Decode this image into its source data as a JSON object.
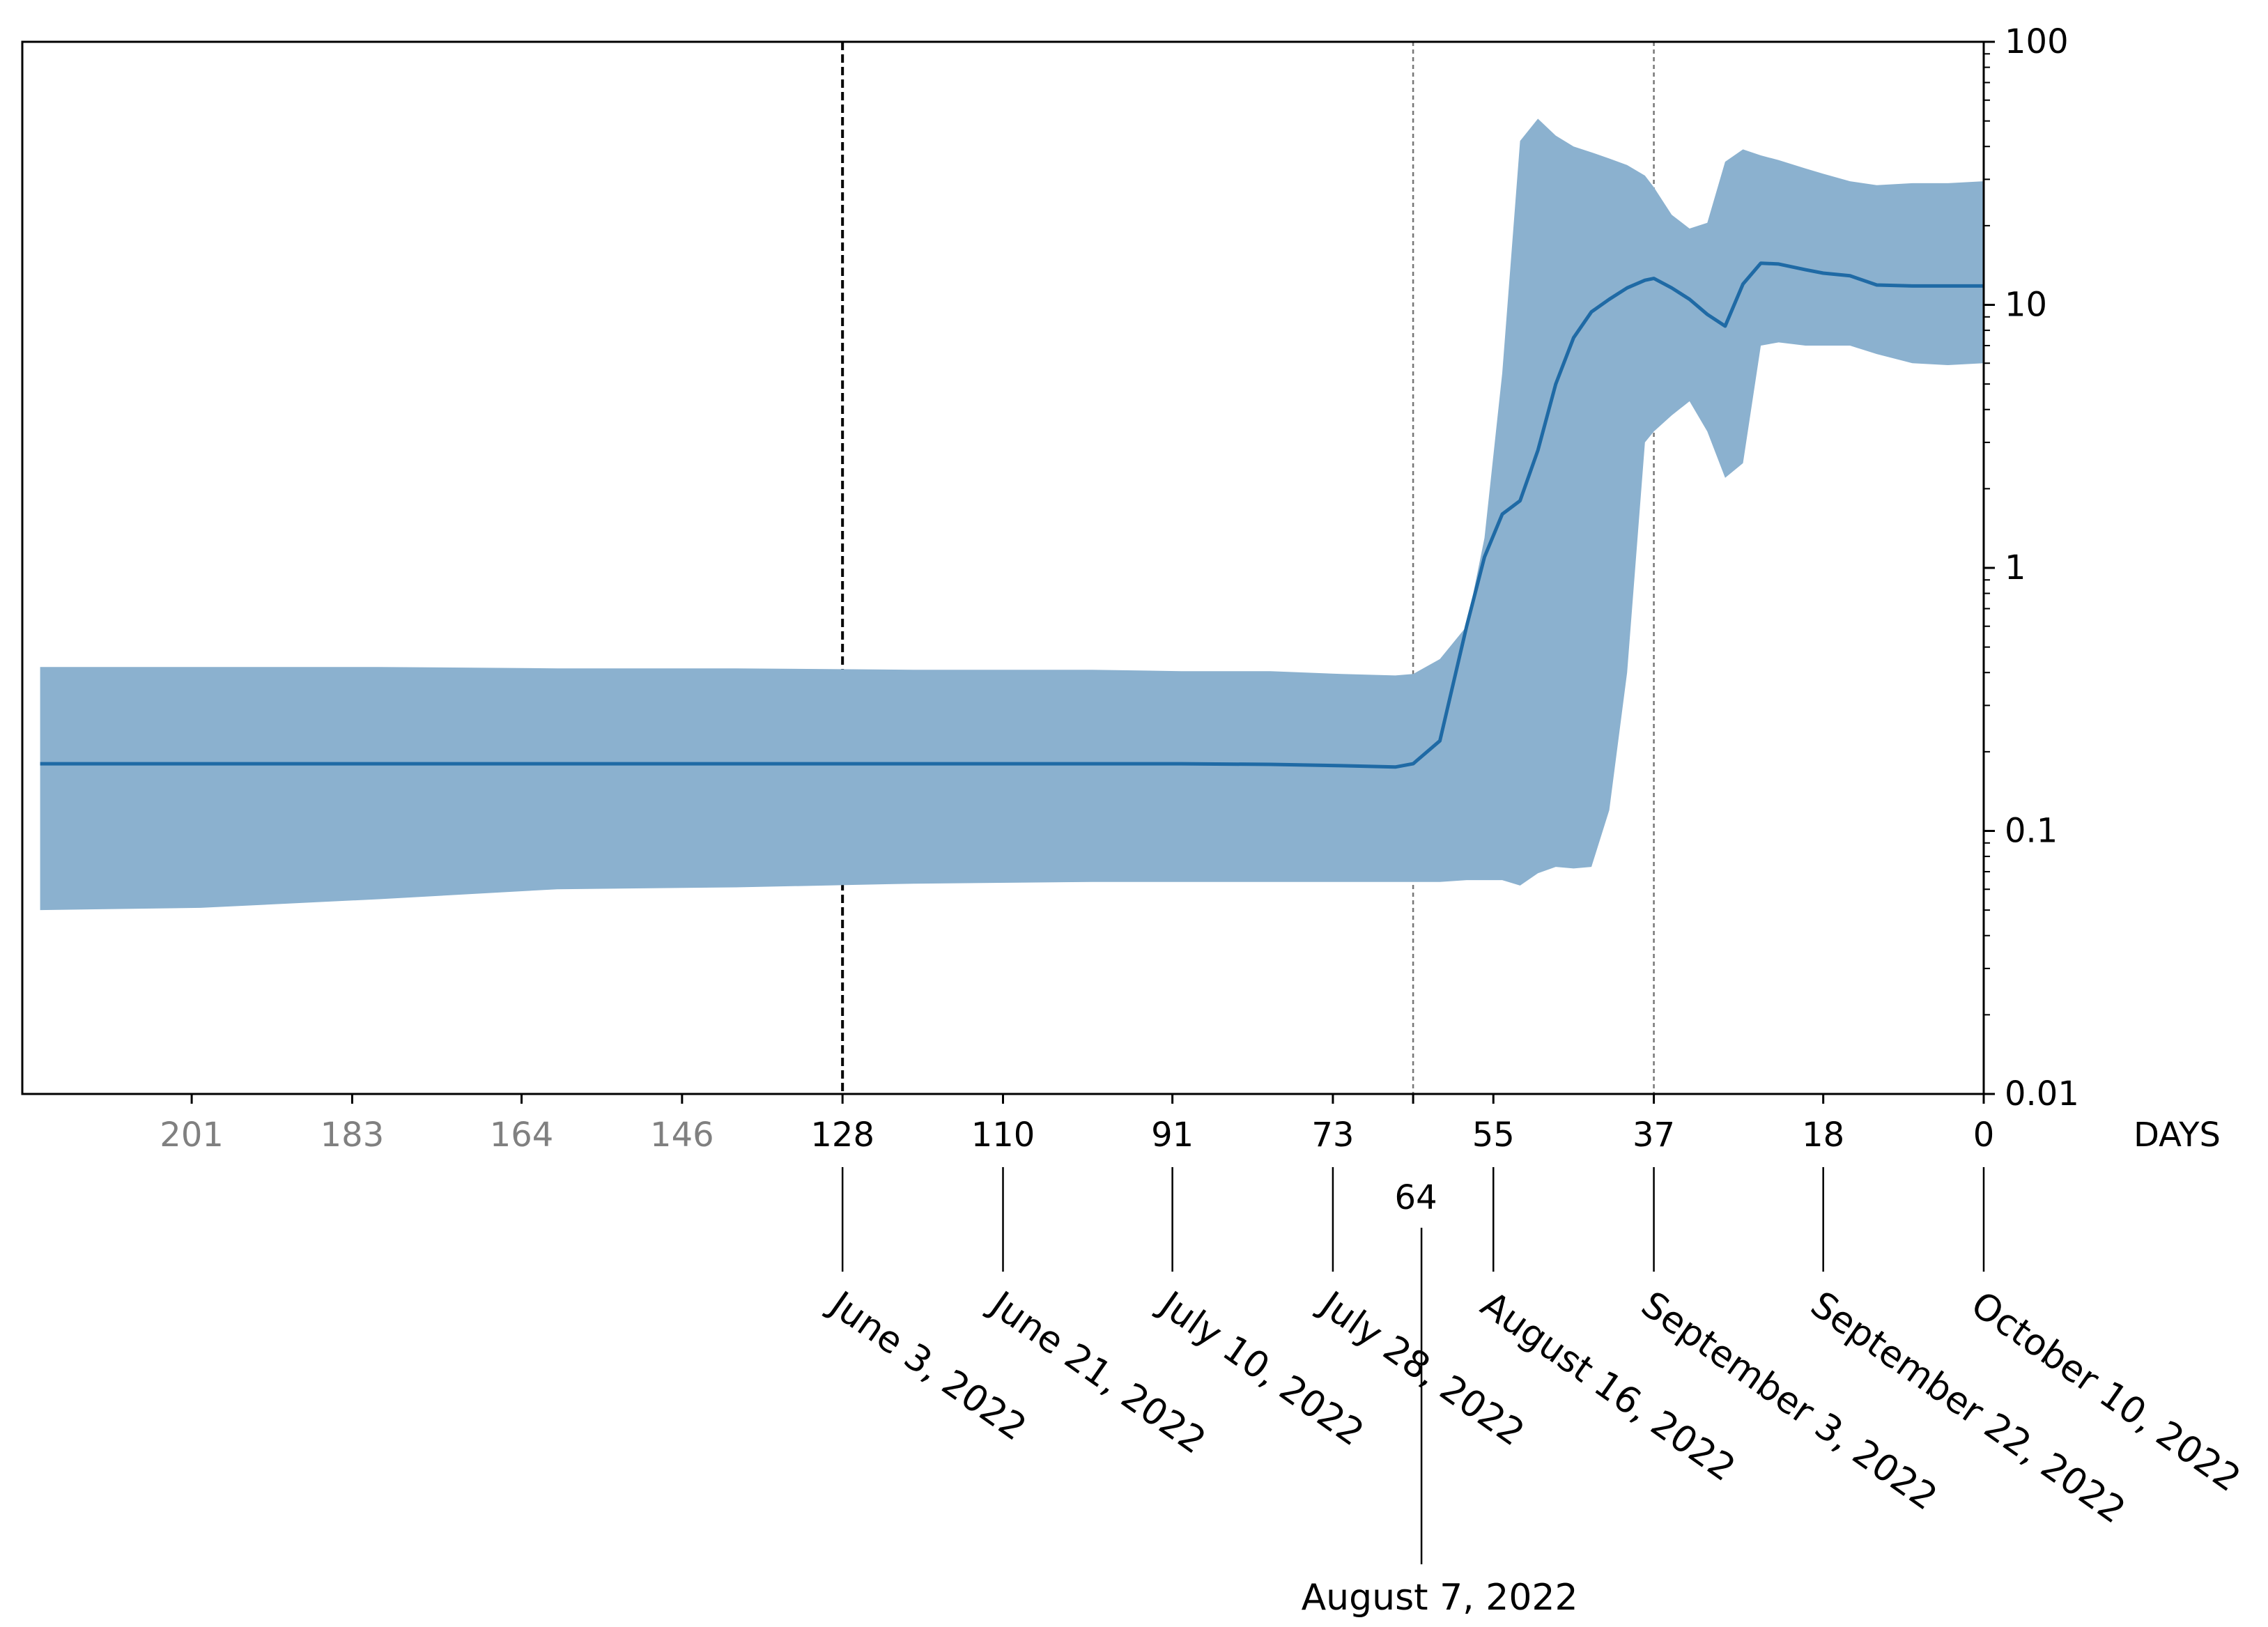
{
  "chart_data": {
    "type": "area",
    "x_label": "DAYS",
    "x_reversed": true,
    "x_range": [
      220,
      0
    ],
    "y_scale": "log",
    "y_range": [
      0.01,
      100
    ],
    "y_ticks": [
      {
        "value": 100,
        "label": "100"
      },
      {
        "value": 10,
        "label": "10"
      },
      {
        "value": 1,
        "label": "1"
      },
      {
        "value": 0.1,
        "label": "0.1"
      },
      {
        "value": 0.01,
        "label": "0.01"
      }
    ],
    "x_ticks": [
      {
        "value": 201,
        "label": "201",
        "dimmed": true
      },
      {
        "value": 183,
        "label": "183",
        "dimmed": true
      },
      {
        "value": 164,
        "label": "164",
        "dimmed": true
      },
      {
        "value": 146,
        "label": "146",
        "dimmed": true
      },
      {
        "value": 128,
        "label": "128",
        "date": "June 3, 2022"
      },
      {
        "value": 110,
        "label": "110",
        "date": "June 21, 2022"
      },
      {
        "value": 91,
        "label": "91",
        "date": "July 10, 2022"
      },
      {
        "value": 73,
        "label": "73",
        "date": "July 28, 2022"
      },
      {
        "value": 55,
        "label": "55",
        "date": "August 16, 2022"
      },
      {
        "value": 37,
        "label": "37",
        "date": "September 3, 2022"
      },
      {
        "value": 18,
        "label": "18",
        "date": "September 22, 2022"
      },
      {
        "value": 0,
        "label": "0",
        "date": "October 10, 2022"
      }
    ],
    "highlight_tick": {
      "value": 64,
      "label": "64",
      "date": "August 7, 2022"
    },
    "reference_lines": [
      {
        "value": 128,
        "style": "dashed-black"
      },
      {
        "value": 64,
        "style": "dotted-gray"
      },
      {
        "value": 37,
        "style": "dotted-gray"
      }
    ],
    "series": [
      {
        "color": "#1f6aa5",
        "band_color": "#8bb1cf",
        "x": [
          218,
          200,
          180,
          160,
          140,
          120,
          100,
          90,
          80,
          72,
          66,
          64,
          61,
          58,
          56,
          54,
          52,
          50,
          48,
          46,
          44,
          42,
          40,
          38,
          37,
          35,
          33,
          31,
          29,
          27,
          25,
          23,
          20,
          18,
          15,
          12,
          8,
          4,
          0
        ],
        "y": [
          0.18,
          0.18,
          0.18,
          0.18,
          0.18,
          0.18,
          0.18,
          0.18,
          0.179,
          0.177,
          0.175,
          0.18,
          0.22,
          0.6,
          1.1,
          1.6,
          1.8,
          2.8,
          5.0,
          7.5,
          9.4,
          10.5,
          11.6,
          12.4,
          12.6,
          11.6,
          10.5,
          9.2,
          8.3,
          12.0,
          14.4,
          14.3,
          13.6,
          13.2,
          12.9,
          11.9,
          11.8,
          11.8,
          11.8
        ],
        "lower": [
          0.05,
          0.051,
          0.055,
          0.06,
          0.061,
          0.063,
          0.064,
          0.064,
          0.064,
          0.064,
          0.064,
          0.064,
          0.064,
          0.065,
          0.065,
          0.065,
          0.062,
          0.069,
          0.073,
          0.072,
          0.073,
          0.12,
          0.4,
          3.0,
          3.3,
          3.8,
          4.3,
          3.3,
          2.2,
          2.5,
          7.0,
          7.2,
          7.0,
          7.0,
          7.0,
          6.5,
          6.0,
          5.9,
          6.0
        ],
        "upper": [
          0.42,
          0.42,
          0.42,
          0.415,
          0.415,
          0.41,
          0.41,
          0.405,
          0.405,
          0.395,
          0.39,
          0.395,
          0.45,
          0.6,
          1.3,
          5.5,
          42.0,
          51.0,
          44.0,
          40.0,
          38.0,
          36.0,
          34.0,
          31.0,
          28.0,
          22.0,
          19.5,
          20.5,
          35.0,
          39.0,
          37.0,
          35.5,
          33.0,
          31.5,
          29.5,
          28.5,
          29.0,
          29.0,
          29.5
        ]
      }
    ]
  }
}
